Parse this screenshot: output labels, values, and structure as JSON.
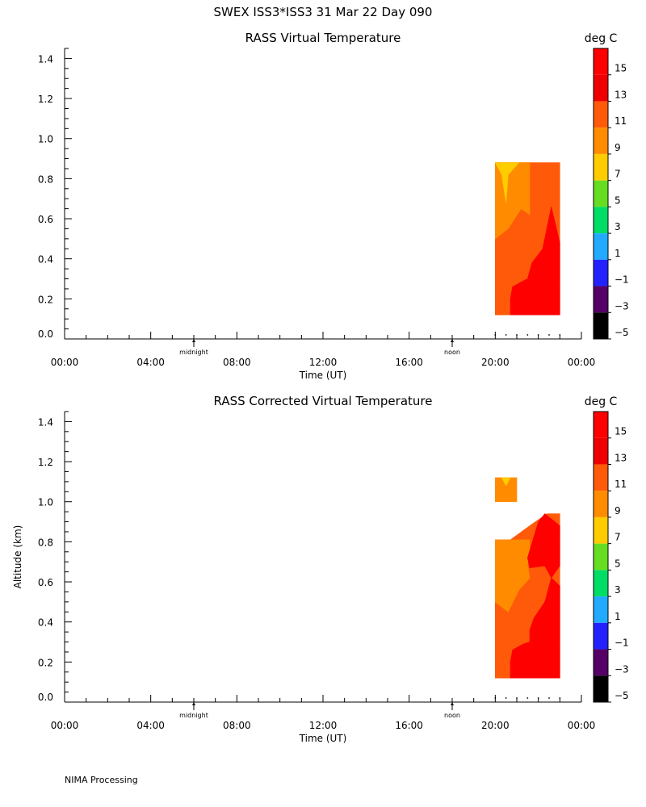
{
  "header": {
    "title": "SWEX ISS3*ISS3  31 Mar 22 Day 090"
  },
  "footer": {
    "text": "NIMA Processing"
  },
  "colorbar": {
    "unit": "deg C",
    "labels": [
      "15",
      "13",
      "11",
      "9",
      "7",
      "5",
      "3",
      "1",
      "−1",
      "−3",
      "−5"
    ],
    "colors": [
      "#ff0000",
      "#ee0000",
      "#ff5a0a",
      "#ff8c00",
      "#ffcc00",
      "#66dd22",
      "#00dd66",
      "#22aaff",
      "#2222ff",
      "#550066",
      "#000000"
    ]
  },
  "chart_data": [
    {
      "type": "heatmap",
      "title": "RASS Virtual Temperature",
      "xlabel": "Time (UT)",
      "ylabel": "",
      "xlim": [
        0,
        24
      ],
      "ylim": [
        0,
        1.45
      ],
      "xticks": [
        "00:00",
        "04:00",
        "08:00",
        "12:00",
        "16:00",
        "20:00",
        "00:00"
      ],
      "yticks": [
        "0.0",
        "0.2",
        "0.4",
        "0.6",
        "0.8",
        "1.0",
        "1.2",
        "1.4"
      ],
      "markers": [
        {
          "label": "midnight",
          "x": 6
        },
        {
          "label": "noon",
          "x": 18
        }
      ],
      "units": "deg C",
      "coverage": [
        {
          "x": [
            20,
            23
          ],
          "y": [
            0.12,
            0.88
          ]
        }
      ],
      "contours": [
        {
          "level": "11 to 13",
          "color": "#ff5a0a",
          "points": [
            [
              20,
              0.12
            ],
            [
              23,
              0.12
            ],
            [
              23,
              0.88
            ],
            [
              20,
              0.88
            ]
          ]
        },
        {
          "level": "9 to 11",
          "color": "#ff8c00",
          "points": [
            [
              20,
              0.5
            ],
            [
              20.6,
              0.55
            ],
            [
              21.2,
              0.65
            ],
            [
              21.6,
              0.62
            ],
            [
              21.6,
              0.72
            ],
            [
              21.6,
              0.88
            ],
            [
              20,
              0.88
            ]
          ]
        },
        {
          "level": "7 to 9",
          "color": "#ffcc00",
          "points": [
            [
              20,
              0.88
            ],
            [
              21.1,
              0.88
            ],
            [
              20.6,
              0.82
            ],
            [
              20.5,
              0.68
            ],
            [
              20.3,
              0.82
            ]
          ]
        },
        {
          "level": "above 13",
          "color": "#ff0000",
          "points": [
            [
              20.7,
              0.12
            ],
            [
              23,
              0.12
            ],
            [
              23,
              0.48
            ],
            [
              22.6,
              0.66
            ],
            [
              22.2,
              0.45
            ],
            [
              21.7,
              0.38
            ],
            [
              21.5,
              0.3
            ],
            [
              21.3,
              0.29
            ],
            [
              20.8,
              0.26
            ],
            [
              20.7,
              0.2
            ]
          ]
        }
      ],
      "series": [
        {
          "x": [
            20,
            20.5,
            21,
            21.5,
            22,
            22.5,
            23
          ],
          "values": [
            0.02,
            0.02,
            0.02,
            0.02,
            0.02,
            0.02,
            0.02
          ]
        }
      ]
    },
    {
      "type": "heatmap",
      "title": "RASS Corrected Virtual Temperature",
      "xlabel": "Time (UT)",
      "ylabel": "Altitude (km)",
      "xlim": [
        0,
        24
      ],
      "ylim": [
        0,
        1.45
      ],
      "xticks": [
        "00:00",
        "04:00",
        "08:00",
        "12:00",
        "16:00",
        "20:00",
        "00:00"
      ],
      "yticks": [
        "0.0",
        "0.2",
        "0.4",
        "0.6",
        "0.8",
        "1.0",
        "1.2",
        "1.4"
      ],
      "markers": [
        {
          "label": "midnight",
          "x": 6
        },
        {
          "label": "noon",
          "x": 18
        }
      ],
      "units": "deg C",
      "coverage": [
        {
          "x": [
            20,
            23
          ],
          "y": [
            0.12,
            0.94
          ]
        },
        {
          "x": [
            20,
            21
          ],
          "y": [
            1.0,
            1.12
          ]
        }
      ],
      "contours": [
        {
          "level": "9 to 11",
          "color": "#ff8c00",
          "points": [
            [
              20,
              1.0
            ],
            [
              21,
              1.0
            ],
            [
              21,
              1.12
            ],
            [
              20,
              1.12
            ]
          ]
        },
        {
          "level": "7 to 9",
          "color": "#ffcc00",
          "points": [
            [
              20.3,
              1.12
            ],
            [
              20.7,
              1.12
            ],
            [
              20.5,
              1.08
            ]
          ]
        },
        {
          "level": "11 to 13",
          "color": "#ff5a0a",
          "points": [
            [
              20,
              0.12
            ],
            [
              23,
              0.12
            ],
            [
              23,
              0.94
            ],
            [
              22.4,
              0.94
            ],
            [
              21.6,
              0.88
            ],
            [
              20.7,
              0.81
            ],
            [
              20,
              0.81
            ]
          ]
        },
        {
          "level": "9 to 11",
          "color": "#ff8c00",
          "points": [
            [
              20,
              0.5
            ],
            [
              20.6,
              0.45
            ],
            [
              21.1,
              0.56
            ],
            [
              21.6,
              0.62
            ],
            [
              21.5,
              0.69
            ],
            [
              21.6,
              0.72
            ],
            [
              21.6,
              0.81
            ],
            [
              20,
              0.81
            ]
          ]
        },
        {
          "level": "above 13",
          "color": "#ff0000",
          "points": [
            [
              21.5,
              0.72
            ],
            [
              22,
              0.9
            ],
            [
              22.3,
              0.94
            ],
            [
              23,
              0.88
            ],
            [
              23,
              0.68
            ],
            [
              22.6,
              0.62
            ],
            [
              22.3,
              0.68
            ],
            [
              21.6,
              0.67
            ]
          ]
        },
        {
          "level": "above 13",
          "color": "#ff0000",
          "points": [
            [
              20.7,
              0.12
            ],
            [
              23,
              0.12
            ],
            [
              23,
              0.58
            ],
            [
              22.6,
              0.62
            ],
            [
              22.3,
              0.5
            ],
            [
              21.8,
              0.42
            ],
            [
              21.6,
              0.36
            ],
            [
              21.6,
              0.3
            ],
            [
              21.3,
              0.29
            ],
            [
              20.8,
              0.26
            ],
            [
              20.7,
              0.2
            ]
          ]
        }
      ],
      "series": [
        {
          "x": [
            20,
            20.5,
            21,
            21.5,
            22,
            22.5,
            23
          ],
          "values": [
            0.02,
            0.02,
            0.02,
            0.02,
            0.02,
            0.02,
            0.02
          ]
        }
      ]
    }
  ]
}
